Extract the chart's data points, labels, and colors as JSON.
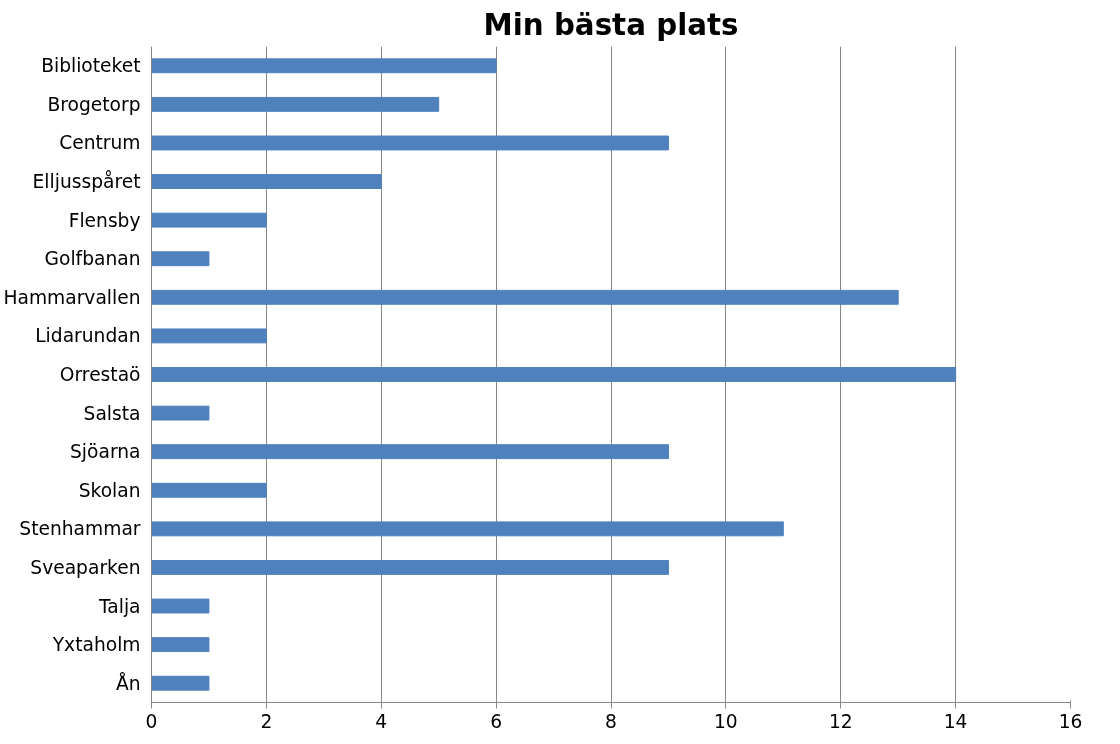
{
  "chart_data": {
    "type": "bar",
    "orientation": "horizontal",
    "title": "Min bästa plats",
    "categories": [
      "Biblioteket",
      "Brogetorp",
      "Centrum",
      "Elljusspåret",
      "Flensby",
      "Golfbanan",
      "Hammarvallen",
      "Lidarundan",
      "Orrestaö",
      "Salsta",
      "Sjöarna",
      "Skolan",
      "Stenhammar",
      "Sveaparken",
      "Talja",
      "Yxtaholm",
      "Ån"
    ],
    "values": [
      6,
      5,
      9,
      4,
      2,
      1,
      13,
      2,
      14,
      1,
      9,
      2,
      11,
      9,
      1,
      1,
      1
    ],
    "color": "#4f81bd",
    "xlim": [
      0,
      16
    ],
    "xticks": [
      0,
      2,
      4,
      6,
      8,
      10,
      12,
      14,
      16
    ],
    "grid": "x"
  }
}
